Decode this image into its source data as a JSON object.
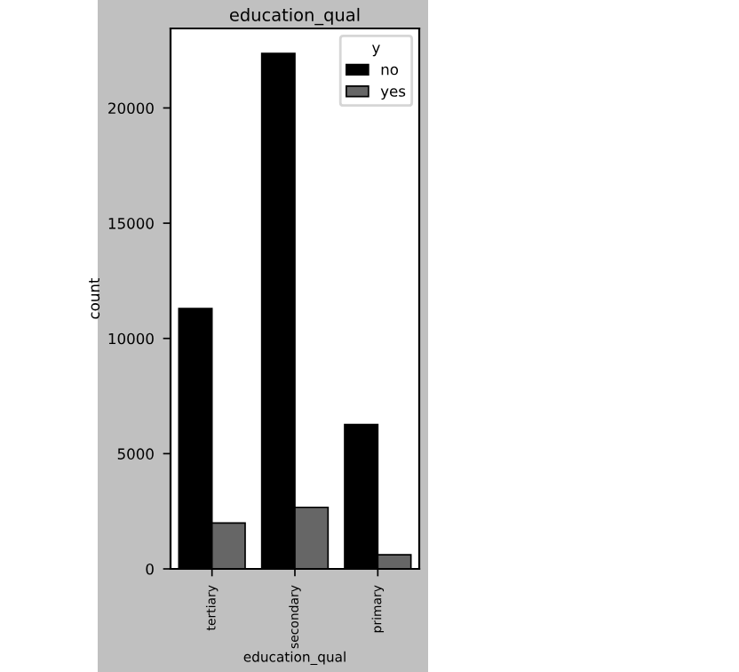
{
  "chart_data": {
    "type": "bar",
    "title": "education_qual",
    "xlabel": "education_qual",
    "ylabel": "count",
    "legend_title": "y",
    "categories": [
      "tertiary",
      "secondary",
      "primary"
    ],
    "series": [
      {
        "name": "no",
        "color": "#000000",
        "values": [
          11300,
          22370,
          6260
        ]
      },
      {
        "name": "yes",
        "color": "#666666",
        "values": [
          1990,
          2670,
          610
        ]
      }
    ],
    "ylim": [
      0,
      23450
    ],
    "yticks": [
      0,
      5000,
      10000,
      15000,
      20000
    ],
    "legend": "top right",
    "grid": false
  }
}
